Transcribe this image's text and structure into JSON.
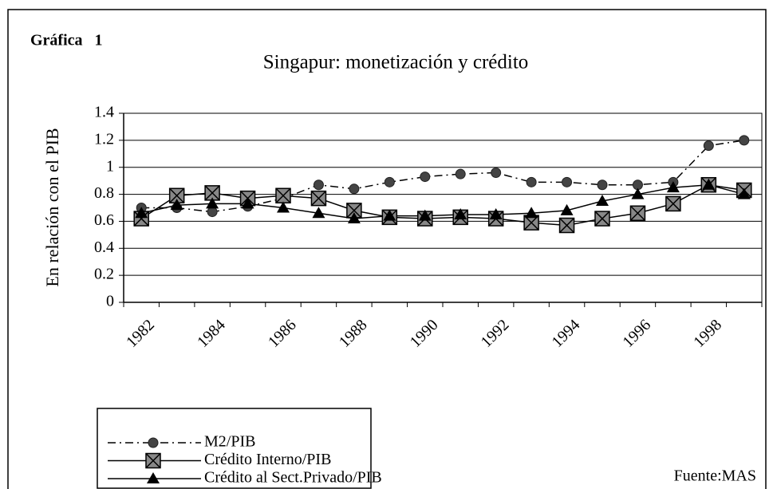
{
  "chart_data": {
    "type": "line",
    "label": "Gráfica   1",
    "title": "Singapur: monetización y crédito",
    "ylabel": "En relación con el PIB",
    "source": "Fuente:MAS",
    "categories": [
      "1982",
      null,
      "1984",
      null,
      "1986",
      null,
      "1988",
      null,
      "1990",
      null,
      "1992",
      null,
      "1994",
      null,
      "1996",
      null,
      "1998",
      null
    ],
    "series": [
      {
        "name": "M2/PIB",
        "color": "#000000",
        "marker": "circle",
        "dash": "dashdot",
        "values": [
          0.7,
          0.7,
          0.67,
          0.71,
          0.77,
          0.87,
          0.84,
          0.89,
          0.93,
          0.95,
          0.96,
          0.89,
          0.89,
          0.87,
          0.87,
          0.89,
          1.16,
          1.2
        ]
      },
      {
        "name": "Crédito Interno/PIB",
        "color": "#000000",
        "marker": "xsquare",
        "dash": "solid",
        "values": [
          0.62,
          0.79,
          0.81,
          0.77,
          0.79,
          0.77,
          0.68,
          0.63,
          0.62,
          0.63,
          0.62,
          0.59,
          0.57,
          0.62,
          0.66,
          0.73,
          0.87,
          0.83
        ]
      },
      {
        "name": "Crédito al Sect.Privado/PIB",
        "color": "#000000",
        "marker": "triangle",
        "dash": "solid",
        "values": [
          0.66,
          0.72,
          0.73,
          0.73,
          0.7,
          0.66,
          0.62,
          0.64,
          0.64,
          0.65,
          0.65,
          0.66,
          0.68,
          0.75,
          0.8,
          0.85,
          0.87,
          0.8
        ]
      }
    ],
    "ylim": [
      0,
      1.4
    ],
    "yticks": [
      0,
      0.2,
      0.4,
      0.6,
      0.8,
      1,
      1.2,
      1.4
    ],
    "grid": true
  }
}
